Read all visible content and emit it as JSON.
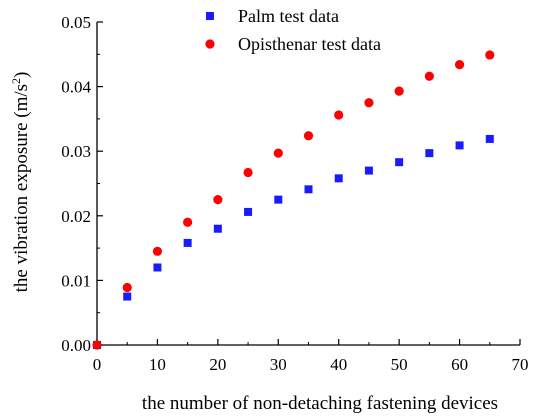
{
  "chart_data": {
    "type": "scatter",
    "title": "",
    "xlabel": "the number of non-detaching fastening devices",
    "ylabel_main": "the vibration exposure (m/s",
    "ylabel_sup": "2",
    "ylabel_close": ")",
    "xlim": [
      0,
      70
    ],
    "ylim": [
      0,
      0.05
    ],
    "x_ticks": [
      0,
      10,
      20,
      30,
      40,
      50,
      60,
      70
    ],
    "x_tick_labels": [
      "0",
      "10",
      "20",
      "30",
      "40",
      "50",
      "60",
      "70"
    ],
    "y_ticks": [
      0,
      0.01,
      0.02,
      0.03,
      0.04,
      0.05
    ],
    "y_tick_labels": [
      "0.00",
      "0.01",
      "0.02",
      "0.03",
      "0.04",
      "0.05"
    ],
    "grid": false,
    "legend_position": "top-center",
    "series": [
      {
        "name": "Palm test data",
        "marker": "square",
        "color": "#1a1aff",
        "x": [
          0,
          5,
          10,
          15,
          20,
          25,
          30,
          35,
          40,
          45,
          50,
          55,
          60,
          65
        ],
        "y": [
          0.0,
          0.0075,
          0.012,
          0.0158,
          0.018,
          0.0206,
          0.0225,
          0.0241,
          0.0258,
          0.027,
          0.0283,
          0.0297,
          0.0309,
          0.0319
        ]
      },
      {
        "name": "Opisthenar test data",
        "marker": "circle",
        "color": "#ff0000",
        "x": [
          0,
          5,
          10,
          15,
          20,
          25,
          30,
          35,
          40,
          45,
          50,
          55,
          60,
          65
        ],
        "y": [
          0.0,
          0.0089,
          0.0145,
          0.019,
          0.0225,
          0.0267,
          0.0297,
          0.0324,
          0.0356,
          0.0375,
          0.0393,
          0.0416,
          0.0434,
          0.0449
        ]
      }
    ]
  }
}
